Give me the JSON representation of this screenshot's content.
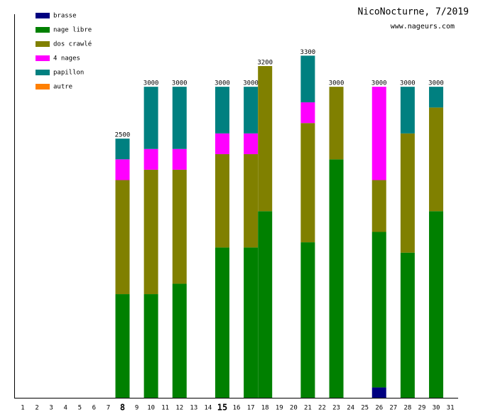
{
  "chart_data": {
    "type": "stacked-bar",
    "title": "NicoNocturne, 7/2019",
    "subtitle": "www.nageurs.com",
    "categories": [
      "1",
      "2",
      "3",
      "4",
      "5",
      "6",
      "7",
      "8",
      "9",
      "10",
      "11",
      "12",
      "13",
      "14",
      "15",
      "16",
      "17",
      "18",
      "19",
      "20",
      "21",
      "22",
      "23",
      "24",
      "25",
      "26",
      "27",
      "28",
      "29",
      "30",
      "31"
    ],
    "ylim": [
      0,
      3700
    ],
    "totals": [
      null,
      null,
      null,
      null,
      null,
      null,
      null,
      2500,
      null,
      3000,
      null,
      3000,
      null,
      null,
      3000,
      null,
      3000,
      3200,
      null,
      null,
      3300,
      null,
      3000,
      null,
      null,
      3000,
      null,
      3000,
      null,
      3000,
      null
    ],
    "series": [
      {
        "name": "brasse",
        "color": "#000080",
        "values": [
          null,
          null,
          null,
          null,
          null,
          null,
          null,
          0,
          null,
          0,
          null,
          0,
          null,
          null,
          0,
          null,
          0,
          0,
          null,
          null,
          0,
          null,
          0,
          null,
          null,
          100,
          null,
          0,
          null,
          0,
          null
        ]
      },
      {
        "name": "nage libre",
        "color": "#008000",
        "values": [
          null,
          null,
          null,
          null,
          null,
          null,
          null,
          1000,
          null,
          1000,
          null,
          1100,
          null,
          null,
          1450,
          null,
          1450,
          1800,
          null,
          null,
          1500,
          null,
          2300,
          null,
          null,
          1500,
          null,
          1400,
          null,
          1800,
          null
        ]
      },
      {
        "name": "dos crawlé",
        "color": "#808000",
        "values": [
          null,
          null,
          null,
          null,
          null,
          null,
          null,
          1100,
          null,
          1200,
          null,
          1100,
          null,
          null,
          900,
          null,
          900,
          1400,
          null,
          null,
          1150,
          null,
          700,
          null,
          null,
          500,
          null,
          1150,
          null,
          1000,
          null
        ]
      },
      {
        "name": "4 nages",
        "color": "#ff00ff",
        "values": [
          null,
          null,
          null,
          null,
          null,
          null,
          null,
          200,
          null,
          200,
          null,
          200,
          null,
          null,
          200,
          null,
          200,
          0,
          null,
          null,
          200,
          null,
          0,
          null,
          null,
          900,
          null,
          0,
          null,
          0,
          null
        ]
      },
      {
        "name": "papillon",
        "color": "#008080",
        "values": [
          null,
          null,
          null,
          null,
          null,
          null,
          null,
          200,
          null,
          600,
          null,
          600,
          null,
          null,
          450,
          null,
          450,
          0,
          null,
          null,
          450,
          null,
          0,
          null,
          null,
          0,
          null,
          450,
          null,
          200,
          null
        ]
      },
      {
        "name": "autre",
        "color": "#ff8000",
        "values": [
          null,
          null,
          null,
          null,
          null,
          null,
          null,
          0,
          null,
          0,
          null,
          0,
          null,
          null,
          0,
          null,
          0,
          0,
          null,
          null,
          0,
          null,
          0,
          null,
          null,
          0,
          null,
          0,
          null,
          0,
          null
        ]
      }
    ]
  }
}
